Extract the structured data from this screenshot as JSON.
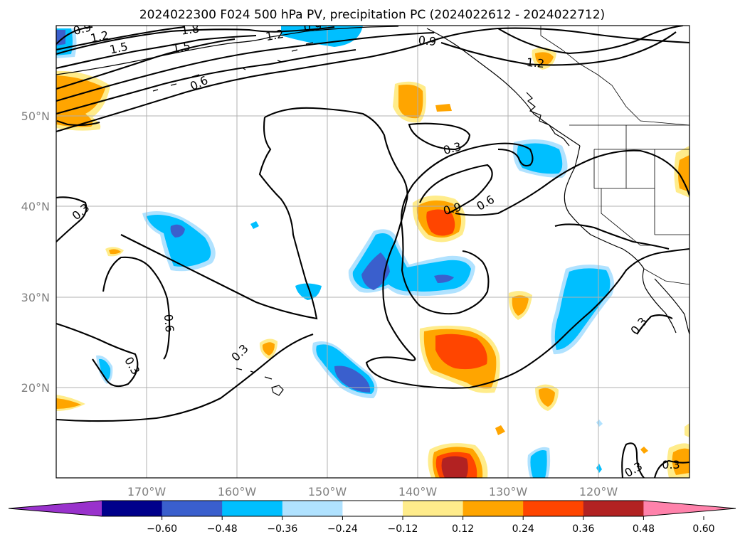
{
  "figure": {
    "title": "2024022300 F024 500 hPa PV, precipitation PC (2024022612 - 2024022712)"
  },
  "axes": {
    "lat_labels": [
      "50°N",
      "40°N",
      "30°N",
      "20°N"
    ],
    "lon_labels": [
      "170°W",
      "160°W",
      "150°W",
      "140°W",
      "130°W",
      "120°W"
    ]
  },
  "colorbar": {
    "tick_labels": [
      "−0.60",
      "−0.48",
      "−0.36",
      "−0.24",
      "−0.12",
      "0.12",
      "0.24",
      "0.36",
      "0.48",
      "0.60"
    ],
    "colors": [
      "#9932cc",
      "#00008b",
      "#3a5fcd",
      "#00bfff",
      "#b0e2ff",
      "#ffffff",
      "#ffec8b",
      "#ffa500",
      "#ff4500",
      "#b22222",
      "#ff82ab"
    ]
  },
  "contour_labels": [
    "0.9",
    "1.2",
    "1.5",
    "1.8",
    "1.5",
    "1.2",
    "0.9",
    "0.9",
    "1.2",
    "0.6",
    "0.3",
    "0.3",
    "0.9",
    "0.6",
    "0.6",
    "0.3",
    "0.3",
    "0.3",
    "0.3",
    "0.3"
  ],
  "map": {
    "projection": "PlateCarree",
    "lon_range": [
      -180,
      -110
    ],
    "lat_range": [
      10,
      60
    ],
    "gridlines": true,
    "field_contoured": "500 hPa PV",
    "field_shaded": "precipitation PC"
  }
}
